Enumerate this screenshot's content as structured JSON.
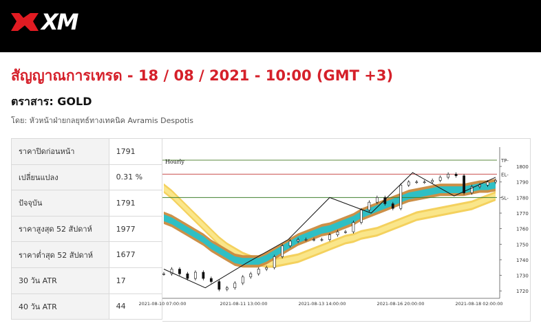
{
  "header": {
    "logo_text": "XM",
    "brand_color": "#e11b22"
  },
  "headline": "สัญญาณการเทรด - 18 / 08 / 2021 - 10:00 (GMT +3)",
  "instrument": "ตราสาร: GOLD",
  "author": "โดย: หัวหน้าฝ่ายกลยุทธ์ทางเทคนิค Avramis Despotis",
  "stats": [
    {
      "label": "ราคาปิดก่อนหน้า",
      "value": "1791"
    },
    {
      "label": "เปลี่ยนแปลง",
      "value": "0.31 %"
    },
    {
      "label": "ปัจจุบัน",
      "value": "1791"
    },
    {
      "label": "ราคาสูงสุด 52 สัปดาห์",
      "value": "1977"
    },
    {
      "label": "ราคาต่ำสุด 52 สัปดาห์",
      "value": "1677"
    },
    {
      "label": "30 วัน ATR",
      "value": "17"
    },
    {
      "label": "40 วัน ATR",
      "value": "44"
    }
  ],
  "chart_data": {
    "type": "line",
    "title": "Hourly",
    "ylim": [
      1717,
      1808
    ],
    "y_ticks": [
      1720,
      1730,
      1740,
      1750,
      1760,
      1770,
      1780,
      1790,
      1800
    ],
    "x_tick_labels": [
      "2021-08-10 07:00:00",
      "2021-08-11 13:00:00",
      "2021-08-13 14:00:00",
      "2021-08-16 20:00:00",
      "2021-08-18 02:00:00"
    ],
    "levels": [
      {
        "label": "TP",
        "value": 1804,
        "color": "#5a8a3c"
      },
      {
        "label": "EL",
        "value": 1795,
        "color": "#c9504f"
      },
      {
        "label": "SL",
        "value": 1780,
        "color": "#3f7f2e"
      }
    ],
    "grid": false,
    "series": [
      {
        "role": "price",
        "color": "#111111",
        "values": [
          1731,
          1734,
          1731,
          1728,
          1732,
          1728,
          1726,
          1721,
          1722,
          1725,
          1729,
          1731,
          1734,
          1735,
          1742,
          1749,
          1752,
          1753,
          1753,
          1753,
          1753,
          1756,
          1758,
          1758,
          1764,
          1772,
          1777,
          1780,
          1776,
          1773,
          1788,
          1790,
          1790,
          1790,
          1791,
          1793,
          1795,
          1794,
          1783,
          1787,
          1788,
          1790,
          1791
        ]
      },
      {
        "role": "trend-line",
        "color": "#111111",
        "values": [
          1734,
          1722,
          1738,
          1753,
          1780,
          1770,
          1796,
          1781,
          1793
        ]
      },
      {
        "role": "fast-band",
        "fill": "#2fbfc4",
        "edge": "#c98a3e",
        "values": [
          1767,
          1765,
          1762,
          1759,
          1756,
          1753,
          1749,
          1746,
          1743,
          1740,
          1739,
          1739,
          1739,
          1741,
          1744,
          1747,
          1750,
          1753,
          1755,
          1757,
          1759,
          1760,
          1762,
          1764,
          1766,
          1769,
          1771,
          1773,
          1775,
          1777,
          1779,
          1781,
          1782,
          1783,
          1784,
          1785,
          1785,
          1785,
          1785,
          1786,
          1787,
          1787,
          1788
        ]
      },
      {
        "role": "slow-band",
        "fill": "#fae68a",
        "edge": "#f3cf55",
        "values": [
          1786,
          1782,
          1777,
          1772,
          1767,
          1762,
          1757,
          1752,
          1748,
          1745,
          1742,
          1740,
          1739,
          1738,
          1738,
          1739,
          1740,
          1741,
          1743,
          1745,
          1747,
          1749,
          1751,
          1753,
          1754,
          1756,
          1757,
          1758,
          1760,
          1762,
          1764,
          1766,
          1768,
          1769,
          1770,
          1771,
          1772,
          1773,
          1774,
          1775,
          1777,
          1779,
          1781
        ]
      }
    ]
  }
}
